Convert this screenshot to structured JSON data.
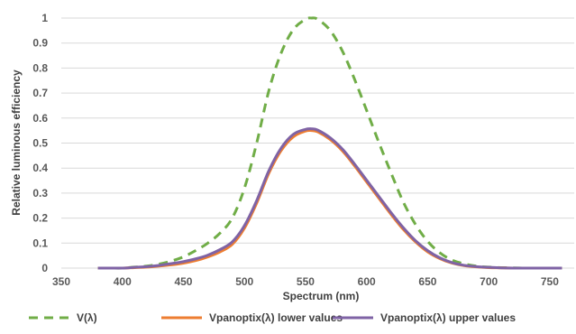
{
  "chart_data": {
    "type": "line",
    "title": "",
    "xlabel": "Spectrum (nm)",
    "ylabel": "Relative luminous efficiency",
    "xlim": [
      350,
      770
    ],
    "ylim": [
      0,
      1
    ],
    "x_ticks": [
      350,
      400,
      450,
      500,
      550,
      600,
      650,
      700,
      750
    ],
    "y_ticks": [
      0,
      0.1,
      0.2,
      0.3,
      0.4,
      0.5,
      0.6,
      0.7,
      0.8,
      0.9,
      1
    ],
    "grid": "horizontal",
    "legend_position": "bottom",
    "x": [
      380,
      390,
      400,
      410,
      420,
      430,
      440,
      450,
      460,
      470,
      480,
      490,
      500,
      510,
      520,
      530,
      540,
      550,
      555,
      560,
      570,
      580,
      590,
      600,
      610,
      620,
      630,
      640,
      650,
      660,
      670,
      680,
      690,
      700,
      710,
      720,
      730,
      740,
      750,
      760
    ],
    "series": [
      {
        "name": "V(λ)",
        "color": "#70ad47",
        "style": "dashed",
        "values": [
          0.0,
          0.0,
          0.0,
          0.004,
          0.008,
          0.016,
          0.028,
          0.045,
          0.07,
          0.1,
          0.14,
          0.2,
          0.32,
          0.5,
          0.71,
          0.86,
          0.954,
          0.995,
          1.0,
          0.995,
          0.952,
          0.87,
          0.757,
          0.631,
          0.503,
          0.381,
          0.265,
          0.175,
          0.107,
          0.061,
          0.032,
          0.017,
          0.008,
          0.004,
          0.002,
          0.001,
          0.0,
          0.0,
          0.0,
          0.0
        ]
      },
      {
        "name": "Vpanoptix(λ) lower values",
        "color": "#ed7d31",
        "style": "solid",
        "values": [
          0.0,
          0.0,
          0.0,
          0.002,
          0.004,
          0.008,
          0.013,
          0.02,
          0.03,
          0.045,
          0.065,
          0.095,
          0.16,
          0.26,
          0.38,
          0.47,
          0.525,
          0.548,
          0.55,
          0.545,
          0.515,
          0.47,
          0.41,
          0.345,
          0.28,
          0.215,
          0.155,
          0.105,
          0.065,
          0.038,
          0.02,
          0.01,
          0.005,
          0.002,
          0.001,
          0.0,
          0.0,
          0.0,
          0.0,
          0.0
        ]
      },
      {
        "name": "Vpanoptix(λ) upper values",
        "color": "#7f63a5",
        "style": "solid",
        "values": [
          0.0,
          0.0,
          0.0,
          0.003,
          0.006,
          0.011,
          0.018,
          0.026,
          0.037,
          0.052,
          0.074,
          0.105,
          0.17,
          0.27,
          0.39,
          0.48,
          0.535,
          0.555,
          0.557,
          0.552,
          0.522,
          0.477,
          0.417,
          0.352,
          0.287,
          0.222,
          0.162,
          0.11,
          0.07,
          0.041,
          0.022,
          0.011,
          0.006,
          0.003,
          0.001,
          0.0,
          0.0,
          0.0,
          0.0,
          0.0
        ]
      }
    ]
  }
}
